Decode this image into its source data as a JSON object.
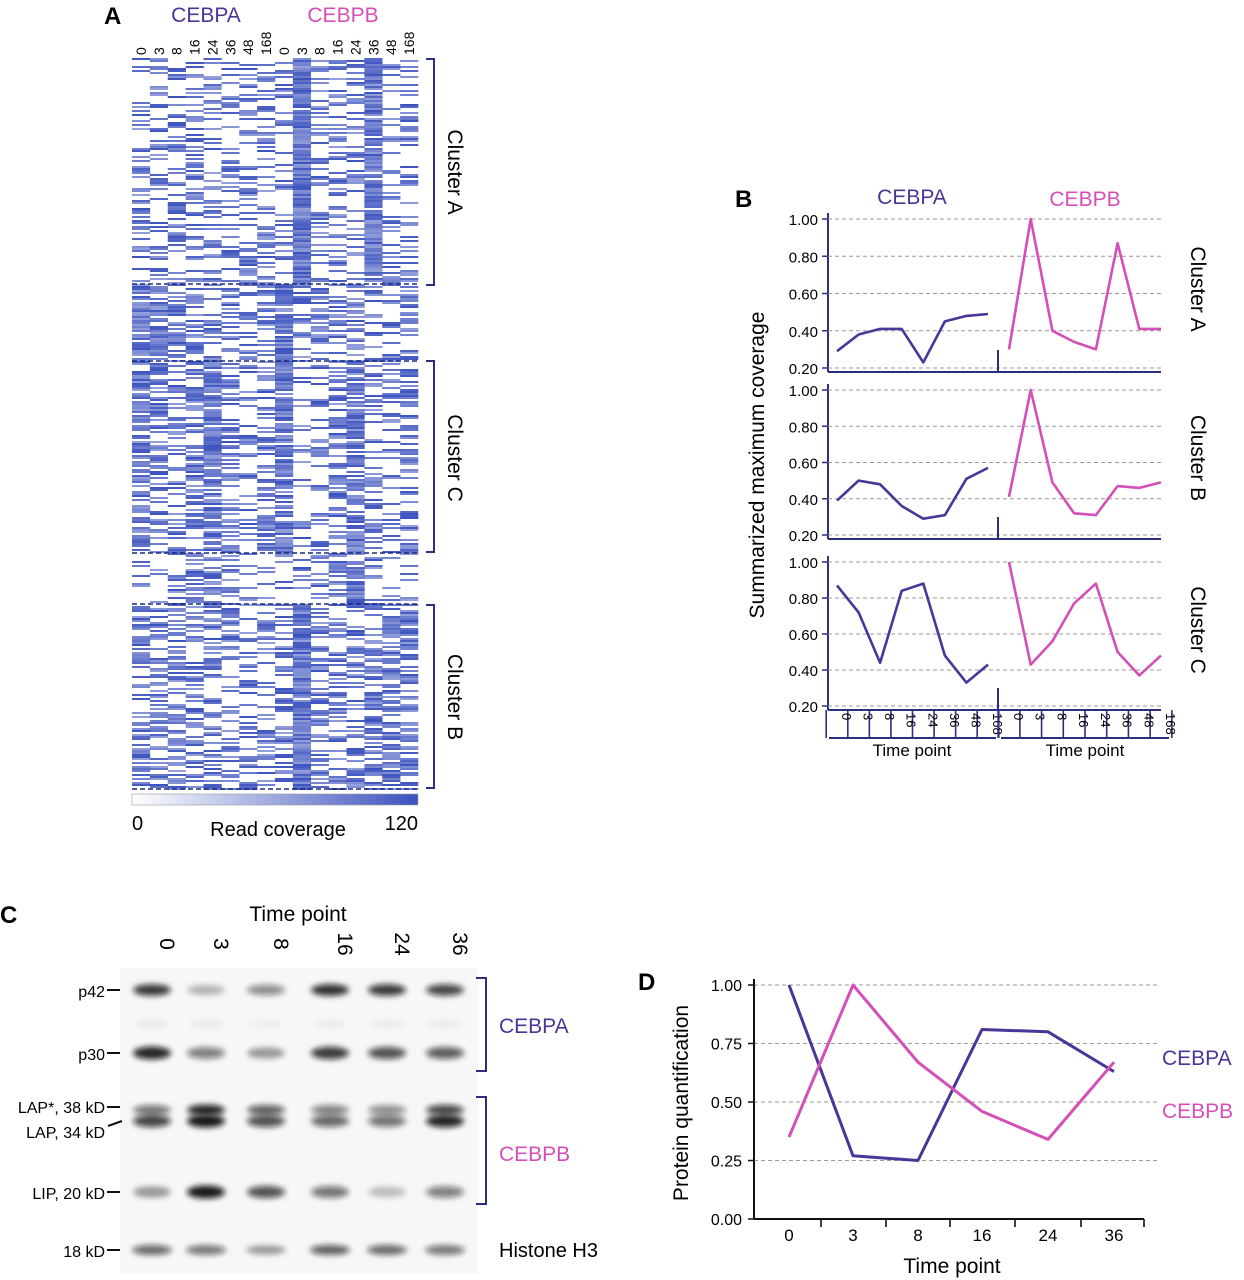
{
  "colors": {
    "cebpa": "#4a3598",
    "cebpb": "#d44fb8",
    "heat": "#3c52bd",
    "axis": "#2b2f80",
    "grid": "#9a9a9a"
  },
  "panel_a": {
    "letter": "A",
    "group_labels": [
      "CEBPA",
      "CEBPB"
    ],
    "columns": [
      "0",
      "3",
      "8",
      "16",
      "24",
      "36",
      "48",
      "168",
      "0",
      "3",
      "8",
      "16",
      "24",
      "36",
      "48",
      "168"
    ],
    "clusters": [
      "Cluster A",
      "Cluster C",
      "Cluster B"
    ],
    "scale_min": "0",
    "scale_max": "120",
    "scale_label": "Read coverage"
  },
  "panel_b": {
    "letter": "B",
    "group_labels": [
      "CEBPA",
      "CEBPB"
    ],
    "ylabel": "Summarized maximum coverage",
    "xlabel": "Time point",
    "xticks": [
      "0",
      "3",
      "8",
      "16",
      "24",
      "36",
      "48",
      "168"
    ],
    "yticks": [
      "1.00",
      "0.80",
      "0.60",
      "0.40",
      "0.20"
    ],
    "row_labels": [
      "Cluster A",
      "Cluster B",
      "Cluster C"
    ]
  },
  "panel_c": {
    "letter": "C",
    "title": "Time point",
    "lanes": [
      "0",
      "3",
      "8",
      "16",
      "24",
      "36"
    ],
    "band_labels": [
      "p42",
      "p30",
      "LAP*, 38 kD",
      "LAP, 34 kD",
      "LIP, 20 kD",
      "18 kD"
    ],
    "group_labels": [
      "CEBPA",
      "CEBPB",
      "Histone H3"
    ]
  },
  "panel_d": {
    "letter": "D",
    "ylabel": "Protein quantification",
    "xlabel": "Time point",
    "yticks": [
      "1.00",
      "0.75",
      "0.50",
      "0.25",
      "0.00"
    ]
  },
  "chart_data": [
    {
      "type": "heatmap",
      "panel": "A",
      "columns": [
        "0",
        "3",
        "8",
        "16",
        "24",
        "36",
        "48",
        "168",
        "0",
        "3",
        "8",
        "16",
        "24",
        "36",
        "48",
        "168"
      ],
      "column_groups": [
        "CEBPA",
        "CEBPB"
      ],
      "row_groups": [
        "Cluster A",
        "Cluster C",
        "Cluster B"
      ],
      "value_range": [
        0,
        120
      ],
      "colorbar_label": "Read coverage"
    },
    {
      "type": "line",
      "panel": "B",
      "x": [
        "0",
        "3",
        "8",
        "16",
        "24",
        "36",
        "48",
        "168"
      ],
      "ylim": [
        0.2,
        1.0
      ],
      "xlabel": "Time point",
      "ylabel": "Summarized maximum coverage",
      "facets": [
        {
          "row": "Cluster A",
          "series": [
            {
              "name": "CEBPA",
              "values": [
                0.29,
                0.38,
                0.41,
                0.41,
                0.23,
                0.45,
                0.48,
                0.49
              ]
            },
            {
              "name": "CEBPB",
              "values": [
                0.3,
                1.0,
                0.4,
                0.34,
                0.3,
                0.87,
                0.41,
                0.41
              ]
            }
          ]
        },
        {
          "row": "Cluster B",
          "series": [
            {
              "name": "CEBPA",
              "values": [
                0.39,
                0.5,
                0.48,
                0.36,
                0.29,
                0.31,
                0.51,
                0.57
              ]
            },
            {
              "name": "CEBPB",
              "values": [
                0.41,
                1.0,
                0.49,
                0.32,
                0.31,
                0.47,
                0.46,
                0.49
              ]
            }
          ]
        },
        {
          "row": "Cluster C",
          "series": [
            {
              "name": "CEBPA",
              "values": [
                0.87,
                0.72,
                0.44,
                0.84,
                0.88,
                0.48,
                0.33,
                0.43
              ]
            },
            {
              "name": "CEBPB",
              "values": [
                1.0,
                0.43,
                0.56,
                0.77,
                0.88,
                0.5,
                0.37,
                0.48
              ]
            }
          ]
        }
      ]
    },
    {
      "type": "line",
      "panel": "D",
      "x": [
        "0",
        "3",
        "8",
        "16",
        "24",
        "36"
      ],
      "ylim": [
        0,
        1.0
      ],
      "xlabel": "Time point",
      "ylabel": "Protein quantification",
      "series": [
        {
          "name": "CEBPA",
          "values": [
            1.0,
            0.27,
            0.25,
            0.81,
            0.8,
            0.63
          ]
        },
        {
          "name": "CEBPB",
          "values": [
            0.35,
            1.0,
            0.67,
            0.46,
            0.34,
            0.67
          ]
        }
      ]
    }
  ]
}
